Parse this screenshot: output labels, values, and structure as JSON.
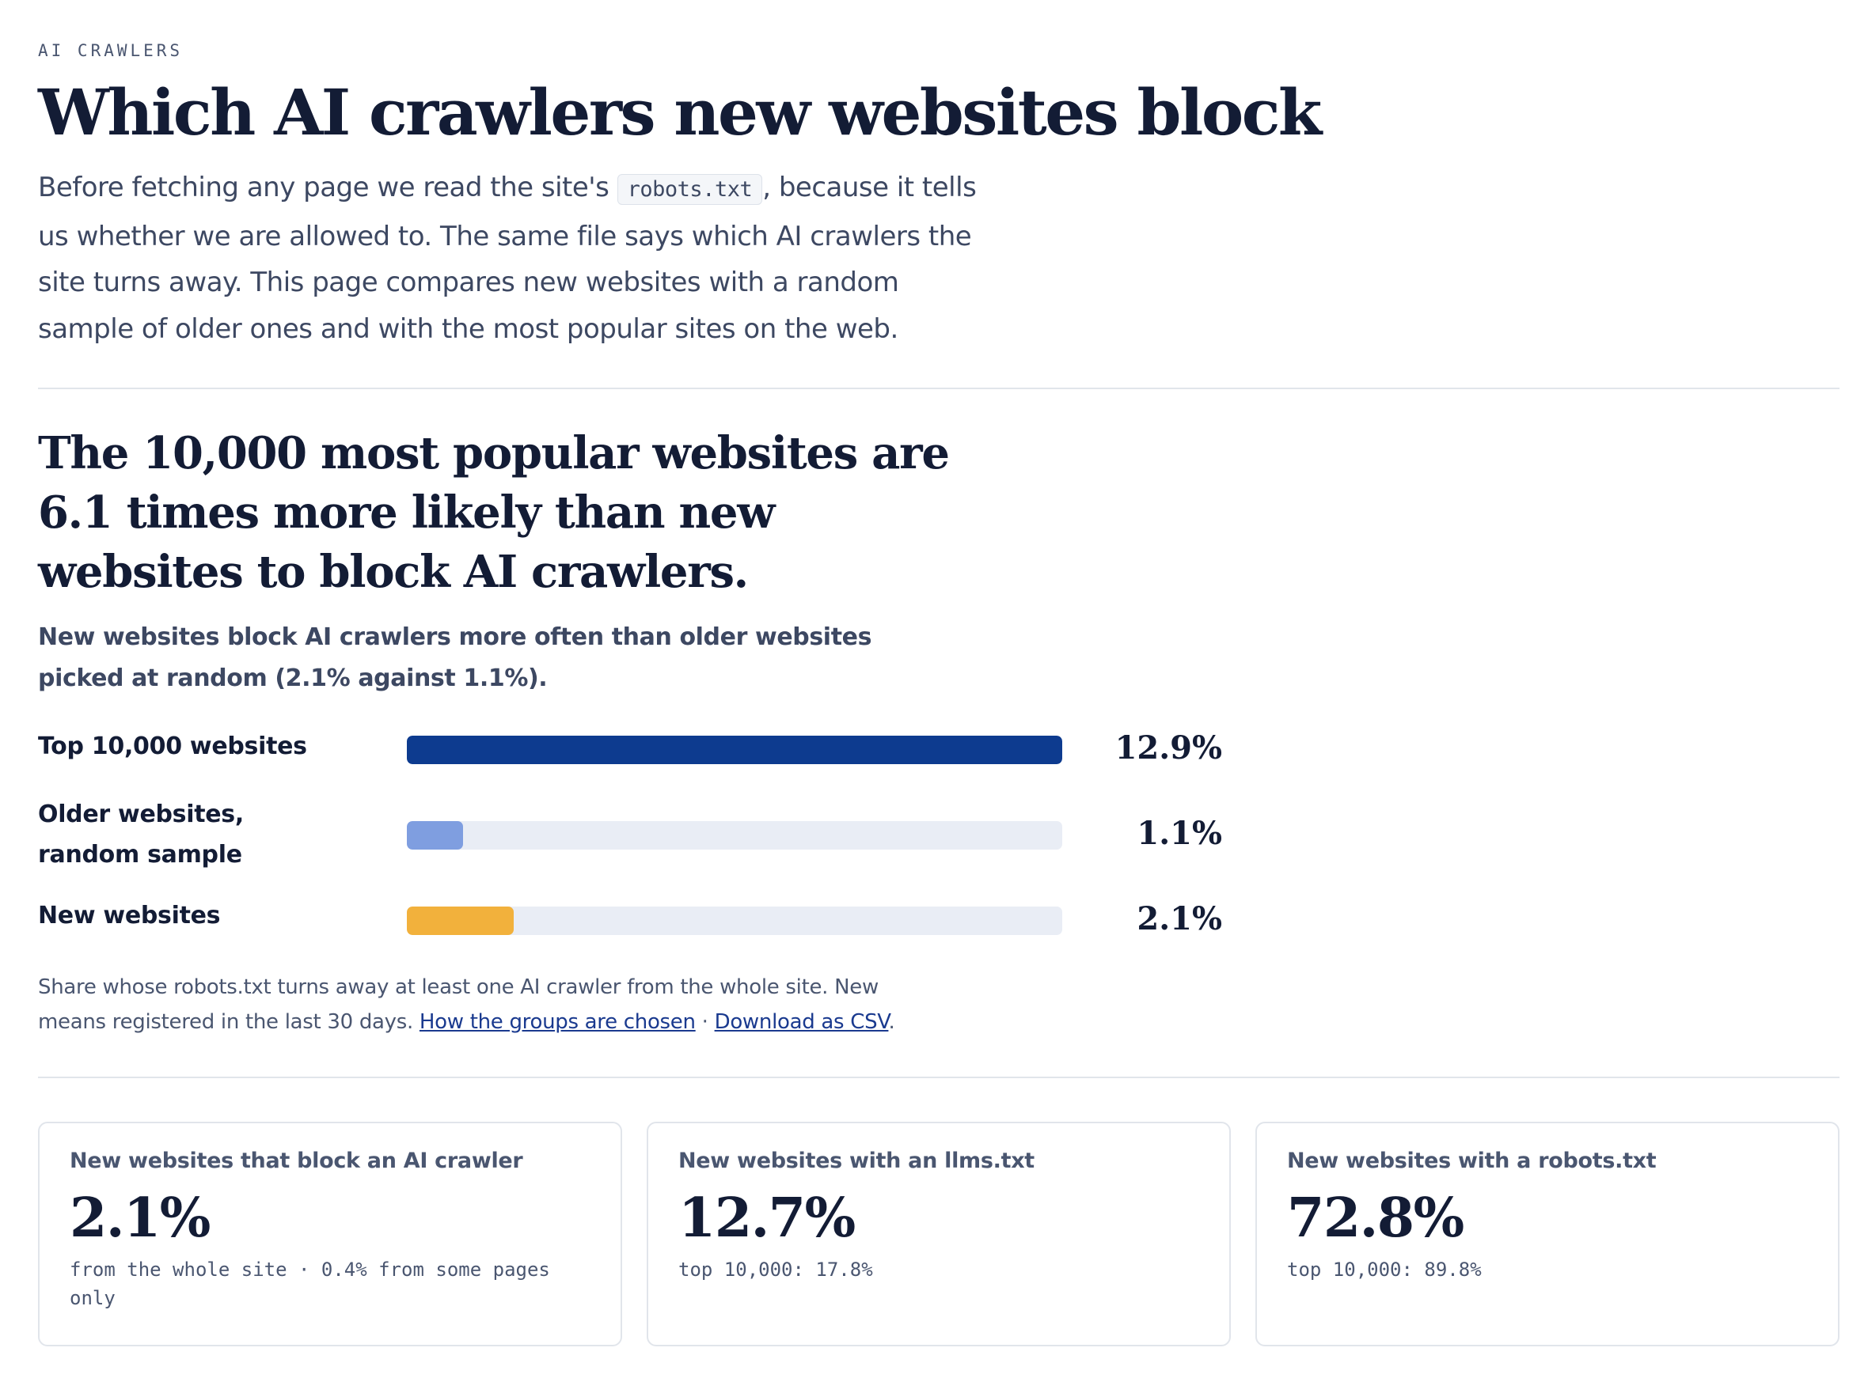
{
  "header": {
    "eyebrow": "AI CRAWLERS",
    "title": "Which AI crawlers new websites block",
    "intro_before": "Before fetching any page we read the site's ",
    "intro_code": "robots.txt",
    "intro_after": ", because it tells us whether we are allowed to. The same file says which AI crawlers the site turns away. This page compares new websites with a random sample of older ones and with the most popular sites on the web."
  },
  "section": {
    "headline": "The 10,000 most popular websites are 6.1 times more likely than new websites to block AI crawlers.",
    "subhead": "New websites block AI crawlers more often than older websites picked at random (2.1% against 1.1%)."
  },
  "chart_data": {
    "type": "bar",
    "orientation": "horizontal",
    "categories": [
      "Top 10,000 websites",
      "Older websites, random sample",
      "New websites"
    ],
    "values": [
      12.9,
      1.1,
      2.1
    ],
    "value_labels": [
      "12.9%",
      "1.1%",
      "2.1%"
    ],
    "colors": [
      "#0d3b8f",
      "#7f9ee0",
      "#f2b13c"
    ],
    "xlim": [
      0,
      12.9
    ],
    "unit": "%"
  },
  "footnote": {
    "text": "Share whose robots.txt turns away at least one AI crawler from the whole site. New means registered in the last 30 days. ",
    "link1": "How the groups are chosen",
    "separator": " · ",
    "link2": "Download as CSV",
    "end": "."
  },
  "cards": [
    {
      "label": "New websites that block an AI crawler",
      "value": "2.1%",
      "note": "from the whole site · 0.4% from some pages only"
    },
    {
      "label": "New websites with an llms.txt",
      "value": "12.7%",
      "note": "top 10,000: 17.8%"
    },
    {
      "label": "New websites with a robots.txt",
      "value": "72.8%",
      "note": "top 10,000: 89.8%"
    }
  ]
}
